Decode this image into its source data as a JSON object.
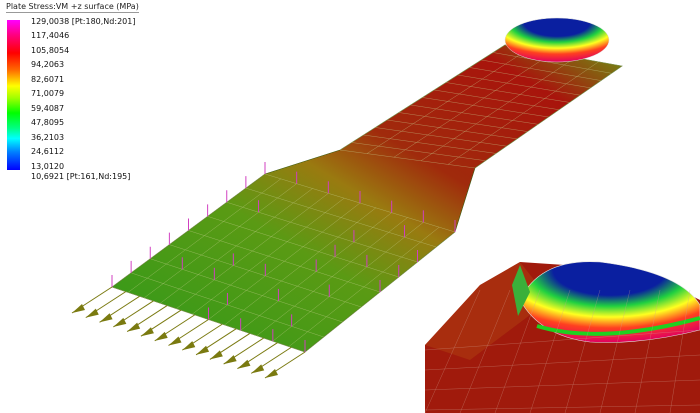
{
  "legend": {
    "title": "Plate Stress:VM +z surface  (MPa)",
    "max_label": "129,0038 [Pt:180,Nd:201]",
    "values": [
      "117,4046",
      "105,8054",
      "94,2063",
      "82,6071",
      "71,0079",
      "59,4087",
      "47,8095",
      "36,2103",
      "24,6112",
      "13,0120"
    ],
    "min_label": "10,6921 [Pt:161,Nd:195]",
    "colors": [
      "#ff00ff",
      "#ff0000",
      "#ffff00",
      "#00ff00",
      "#00ffff",
      "#0000ff"
    ]
  },
  "model": {
    "plate_colors": {
      "low": "#2f9a1a",
      "mid": "#8c8a10",
      "high": "#a8140c",
      "dome": "#0a1fa0"
    },
    "load_arrow_color": "#7a7a10",
    "support_color": "#d040c0"
  }
}
